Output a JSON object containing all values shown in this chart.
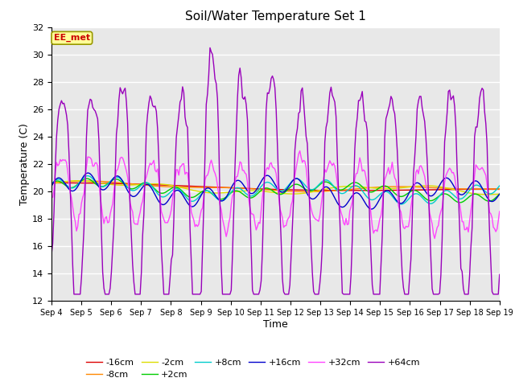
{
  "title": "Soil/Water Temperature Set 1",
  "xlabel": "Time",
  "ylabel": "Temperature (C)",
  "ylim": [
    12,
    32
  ],
  "yticks": [
    12,
    14,
    16,
    18,
    20,
    22,
    24,
    26,
    28,
    30,
    32
  ],
  "x_labels": [
    "Sep 4",
    "Sep 5",
    "Sep 6",
    "Sep 7",
    "Sep 8",
    "Sep 9",
    "Sep 10",
    "Sep 11",
    "Sep 12",
    "Sep 13",
    "Sep 14",
    "Sep 15",
    "Sep 16",
    "Sep 17",
    "Sep 18",
    "Sep 19"
  ],
  "annotation_text": "EE_met",
  "annotation_color": "#cc0000",
  "annotation_bg": "#ffff99",
  "annotation_border": "#999900",
  "bg_color": "#e8e8e8",
  "series_colors": {
    "-16cm": "#dd0000",
    "-8cm": "#ff8800",
    "-2cm": "#dddd00",
    "+2cm": "#00cc00",
    "+8cm": "#00cccc",
    "+16cm": "#0000cc",
    "+32cm": "#ff44ff",
    "+64cm": "#9900bb"
  },
  "legend_order": [
    "-16cm",
    "-8cm",
    "-2cm",
    "+2cm",
    "+8cm",
    "+16cm",
    "+32cm",
    "+64cm"
  ]
}
